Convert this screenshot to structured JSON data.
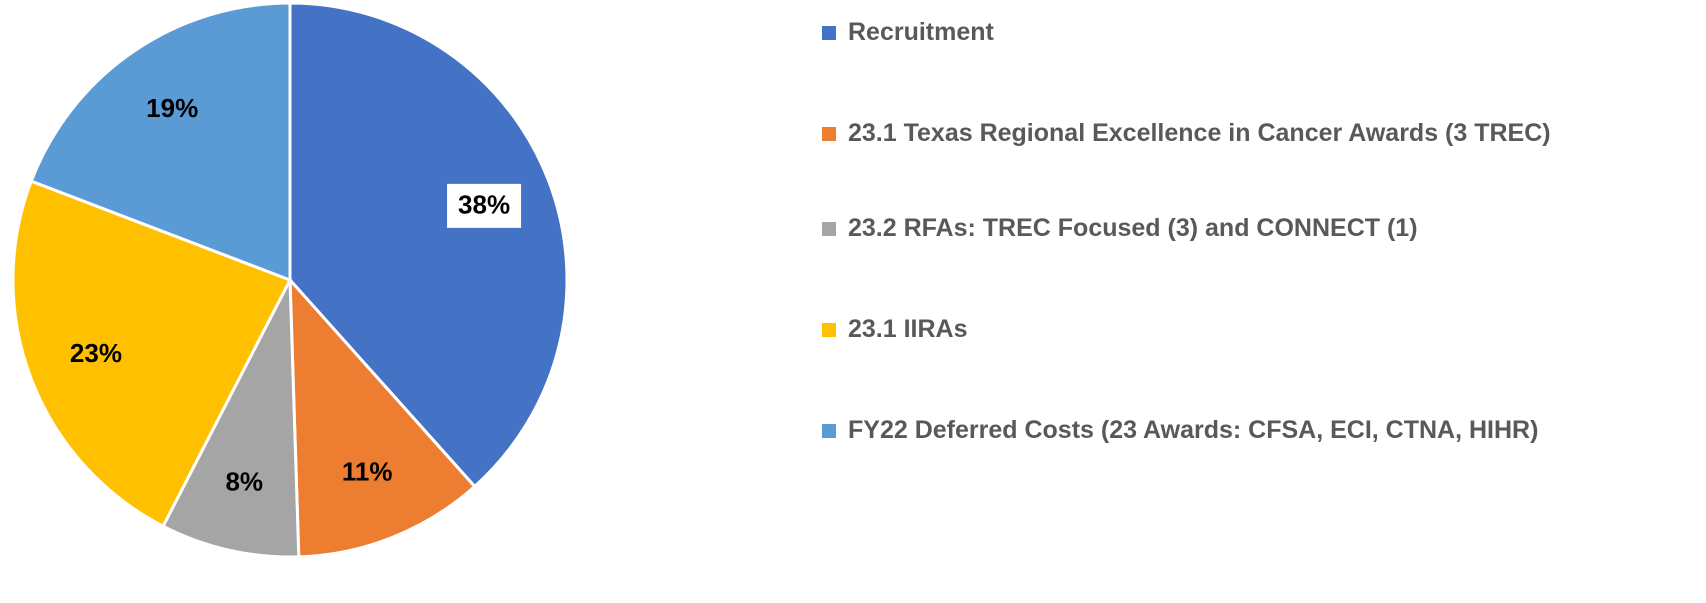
{
  "chart_data": {
    "type": "pie",
    "categories": [
      "Recruitment",
      "23.1 Texas Regional Excellence in Cancer Awards (3 TREC)",
      "23.2  RFAs: TREC Focused (3) and CONNECT (1)",
      "23.1 IIRAs",
      "FY22 Deferred Costs (23 Awards: CFSA, ECI, CTNA, HIHR)"
    ],
    "values": [
      38,
      11,
      8,
      23,
      19
    ],
    "value_labels": [
      "38%",
      "11%",
      "8%",
      "23%",
      "19%"
    ],
    "colors": [
      "#4472c4",
      "#ed7d31",
      "#a5a5a5",
      "#ffc000",
      "#5b9bd5"
    ],
    "legend": "right"
  }
}
